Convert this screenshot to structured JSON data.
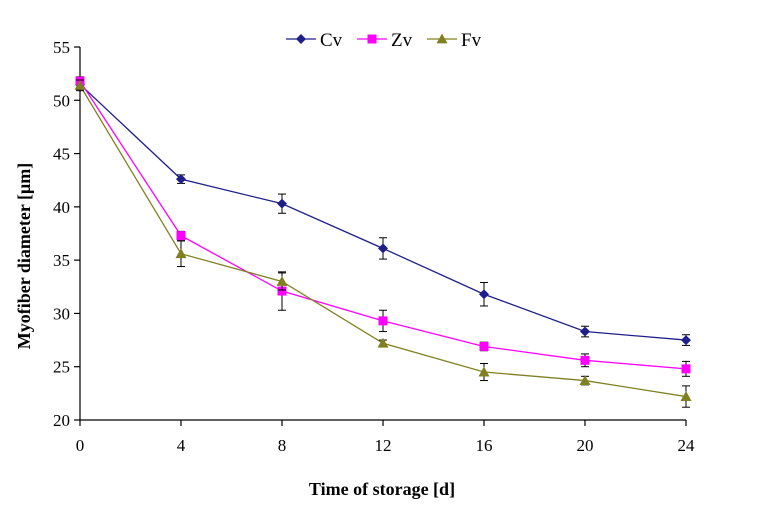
{
  "chart_data": {
    "type": "line",
    "title": "",
    "xlabel": "Time of storage [d]",
    "ylabel": "Myofiber diameter [μm]",
    "x": [
      0,
      4,
      8,
      12,
      16,
      20,
      24
    ],
    "xlim": [
      0,
      24
    ],
    "ylim": [
      20,
      55
    ],
    "xticks": [
      "0",
      "4",
      "8",
      "12",
      "16",
      "20",
      "24"
    ],
    "yticks": [
      "20",
      "25",
      "30",
      "35",
      "40",
      "45",
      "50",
      "55"
    ],
    "grid": false,
    "legend_position": "top-center",
    "series": [
      {
        "name": "Cv",
        "color": "#1f1f8c",
        "marker": "diamond",
        "values": [
          51.5,
          42.6,
          40.3,
          36.1,
          31.8,
          28.3,
          27.5
        ],
        "errors": [
          0.5,
          0.4,
          0.9,
          1.0,
          1.1,
          0.5,
          0.5
        ]
      },
      {
        "name": "Zv",
        "color": "#ff00ff",
        "marker": "square",
        "values": [
          51.8,
          37.3,
          32.1,
          29.3,
          26.9,
          25.6,
          24.8
        ],
        "errors": [
          0.4,
          0.4,
          1.8,
          1.0,
          0.4,
          0.6,
          0.7
        ]
      },
      {
        "name": "Fv",
        "color": "#808020",
        "marker": "triangle",
        "values": [
          51.4,
          35.6,
          33.0,
          27.2,
          24.5,
          23.7,
          22.2
        ],
        "errors": [
          0.5,
          1.2,
          0.8,
          0.3,
          0.8,
          0.4,
          1.0
        ]
      }
    ]
  }
}
